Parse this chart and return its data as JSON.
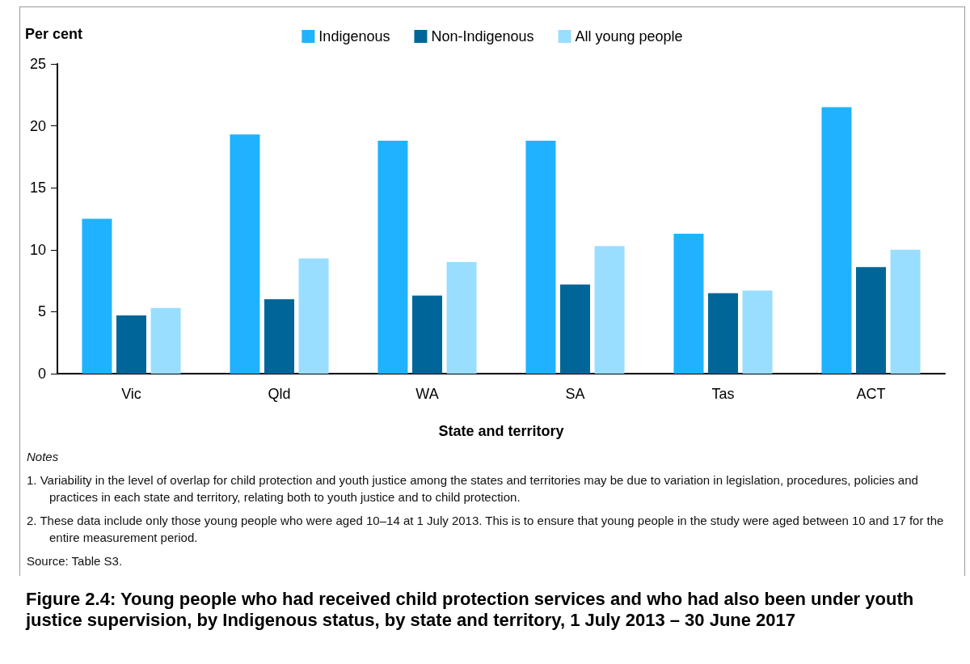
{
  "chart_data": {
    "type": "bar",
    "title": "Figure 2.4: Young people who had received child protection services and who had also been under youth justice supervision, by Indigenous status, by state and territory, 1 July 2013 – 30 June 2017",
    "xlabel": "State and territory",
    "ylabel": "Per cent",
    "categories": [
      "Vic",
      "Qld",
      "WA",
      "SA",
      "Tas",
      "ACT"
    ],
    "series": [
      {
        "name": "Indigenous",
        "color": "#20b2fe",
        "values": [
          12.5,
          19.3,
          18.8,
          18.8,
          11.3,
          21.5
        ]
      },
      {
        "name": "Non-Indigenous",
        "color": "#006699",
        "values": [
          4.7,
          6.0,
          6.3,
          7.2,
          6.5,
          8.6
        ]
      },
      {
        "name": "All young people",
        "color": "#99deff",
        "values": [
          5.3,
          9.3,
          9.0,
          10.3,
          6.7,
          10.0
        ]
      }
    ],
    "ylim": [
      0,
      25
    ],
    "yticks": [
      0,
      5,
      10,
      15,
      20,
      25
    ],
    "grid": false,
    "legend": "top",
    "annotations": [
      "Notes",
      "1. Variability in the level of overlap for child protection and youth justice among the states and territories may be due to variation in legislation, procedures, policies and practices in each state and territory, relating both to youth justice and to child protection.",
      "2. These data include only those young people who were aged 10–14 at 1 July 2013. This is to ensure that young people in the study were aged between 10 and 17 for the entire measurement period.",
      "Source: Table S3."
    ]
  }
}
